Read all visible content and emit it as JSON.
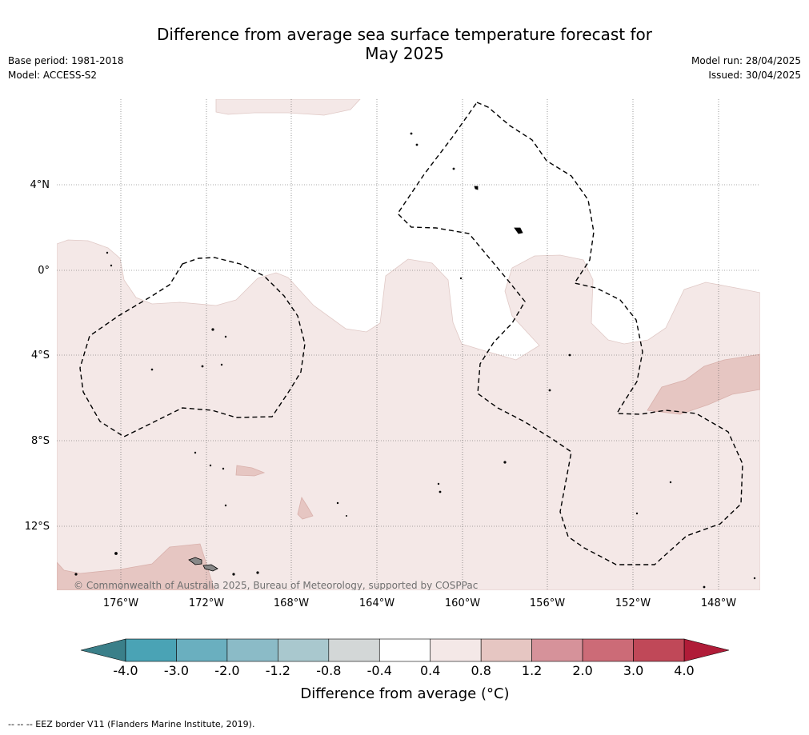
{
  "header": {
    "title_line1": "Difference from average sea surface temperature forecast for",
    "title_line2": "May 2025",
    "base_period": "Base period: 1981-2018",
    "model": "Model: ACCESS-S2",
    "model_run": "Model run: 28/04/2025",
    "issued": "Issued: 30/04/2025"
  },
  "map": {
    "copyright": "© Commonwealth of Australia 2025, Bureau of Meteorology, supported by COSPPac",
    "lat_labels": [
      "4°N",
      "0°",
      "4°S",
      "8°S",
      "12°S"
    ],
    "lon_labels": [
      "176°W",
      "172°W",
      "168°W",
      "164°W",
      "160°W",
      "156°W",
      "152°W",
      "148°W"
    ]
  },
  "colorbar": {
    "title": "Difference from average (°C)",
    "ticks": [
      "-4.0",
      "-3.0",
      "-2.0",
      "-1.2",
      "-0.8",
      "-0.4",
      "0.4",
      "0.8",
      "1.2",
      "2.0",
      "3.0",
      "4.0"
    ],
    "colors": [
      "#4aa3b5",
      "#6aafbf",
      "#8bbbc7",
      "#a9c8ce",
      "#d3d7d7",
      "#ffffff",
      "#f4e8e7",
      "#e6c6c2",
      "#d6929a",
      "#cc6b77",
      "#c04858"
    ],
    "low_extend_color": "#3a7f89",
    "high_extend_color": "#b01c38"
  },
  "footer": {
    "legend_text": "-- -- -- EEZ border V11 (Flanders Marine Institute, 2019)."
  }
}
